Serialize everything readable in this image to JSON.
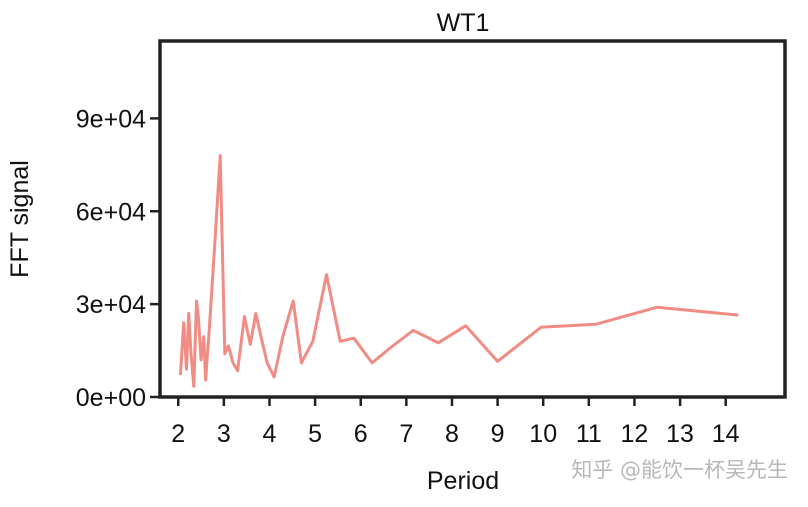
{
  "chart_data": {
    "type": "line",
    "title": "WT1",
    "xlabel": "Period",
    "ylabel": "FFT signal",
    "xlim": [
      1.6,
      15.3
    ],
    "ylim": [
      0,
      115000
    ],
    "xticks": [
      2,
      3,
      4,
      5,
      6,
      7,
      8,
      9,
      10,
      11,
      12,
      13,
      14
    ],
    "xtick_labels": [
      "2",
      "3",
      "4",
      "5",
      "6",
      "7",
      "8",
      "9",
      "10",
      "11",
      "12",
      "13",
      "14"
    ],
    "yticks": [
      0,
      30000,
      60000,
      90000
    ],
    "ytick_labels": [
      "0e+00",
      "3e+04",
      "6e+04",
      "9e+04"
    ],
    "grid": false,
    "series": [
      {
        "name": "WT1",
        "color": "#f08c84",
        "x": [
          2.05,
          2.12,
          2.18,
          2.23,
          2.28,
          2.34,
          2.4,
          2.44,
          2.5,
          2.56,
          2.6,
          2.68,
          2.8,
          2.92,
          3.02,
          3.1,
          3.2,
          3.3,
          3.45,
          3.58,
          3.7,
          3.82,
          3.95,
          4.1,
          4.3,
          4.52,
          4.7,
          4.95,
          5.25,
          5.55,
          5.85,
          6.25,
          6.7,
          7.15,
          7.7,
          8.3,
          9.0,
          9.95,
          11.15,
          12.5,
          14.25
        ],
        "values": [
          7500,
          24000,
          9000,
          27000,
          14000,
          3500,
          31000,
          26000,
          12000,
          19500,
          5500,
          22000,
          49000,
          78000,
          14000,
          16500,
          11000,
          8500,
          26000,
          17000,
          27000,
          19000,
          11000,
          6500,
          20000,
          31000,
          11000,
          18000,
          39500,
          18000,
          19000,
          11000,
          16500,
          21500,
          17500,
          23000,
          11500,
          22500,
          23500,
          29000,
          26500
        ]
      }
    ]
  },
  "watermark": "知乎 @能饮一杯吴先生"
}
